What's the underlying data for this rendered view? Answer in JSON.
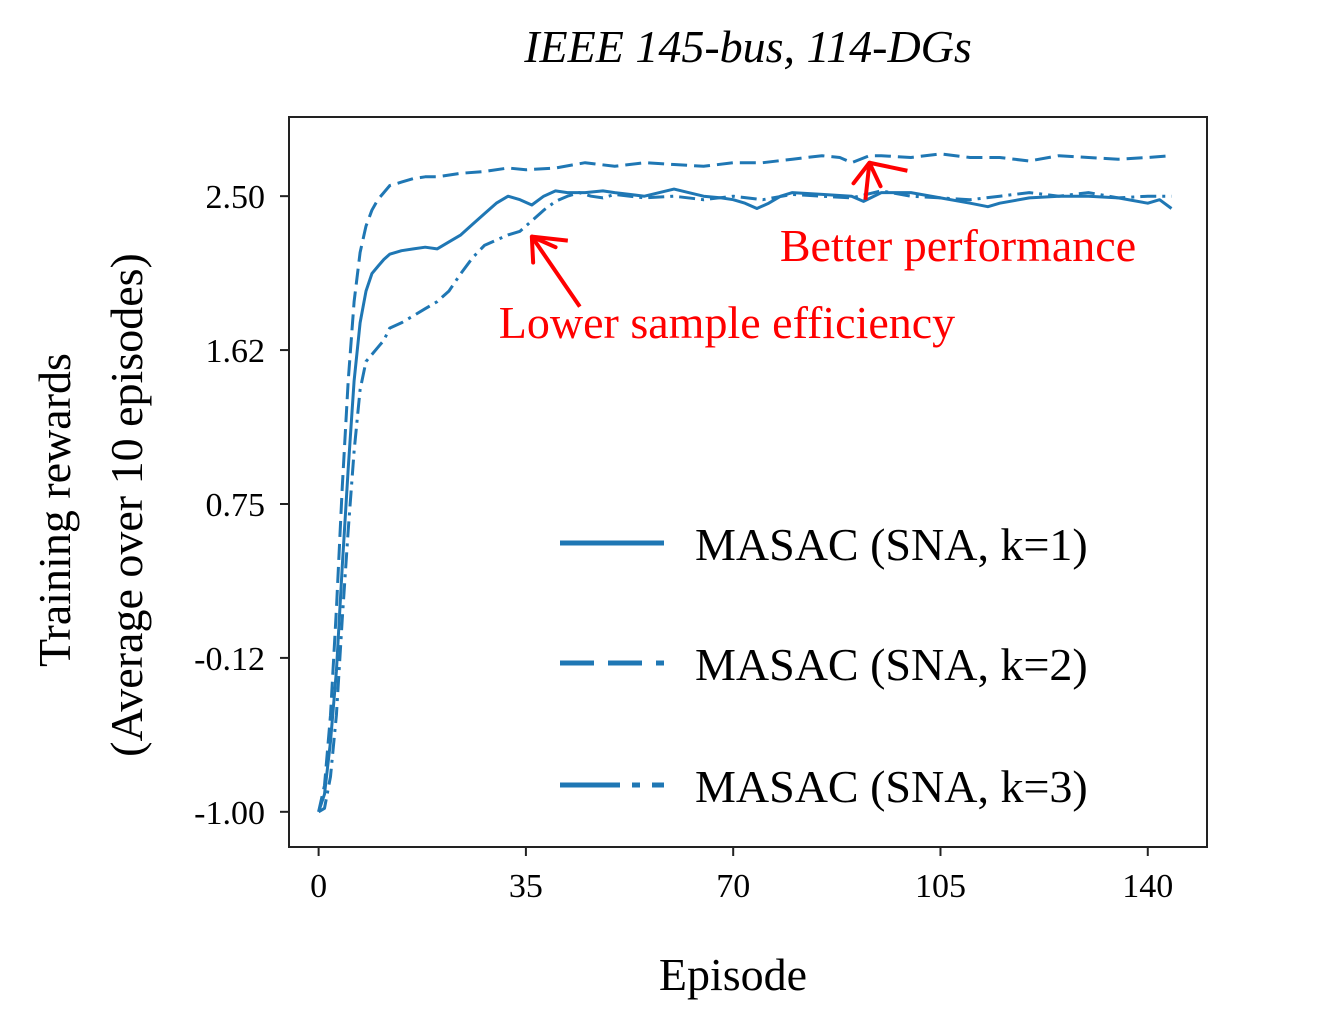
{
  "chart_data": {
    "type": "line",
    "title": "IEEE 145-bus, 114-DGs",
    "xlabel": "Episode",
    "ylabel_lines": [
      "Training rewards",
      "(Average over 10 episodes)"
    ],
    "xlim": [
      -5,
      150
    ],
    "ylim": [
      -1.2,
      2.95
    ],
    "xticks": [
      0,
      35,
      70,
      105,
      140
    ],
    "xtick_labels": [
      "0",
      "35",
      "70",
      "105",
      "140"
    ],
    "yticks": [
      -1.0,
      -0.125,
      0.75,
      1.625,
      2.5
    ],
    "ytick_labels": [
      "-1.00",
      "-0.12",
      "0.75",
      "1.62",
      "2.50"
    ],
    "grid": false,
    "legend_position": "bottom-right",
    "series_color": "#1f77b4",
    "annotation_color": "#ff0000",
    "series": [
      {
        "name": "MASAC (SNA, k=1)",
        "dash": "solid",
        "x": [
          0,
          1,
          2,
          3,
          4,
          5,
          6,
          7,
          8,
          9,
          10,
          11,
          12,
          14,
          16,
          18,
          20,
          22,
          24,
          26,
          28,
          30,
          32,
          34,
          36,
          38,
          40,
          42,
          45,
          48,
          50,
          55,
          60,
          65,
          68,
          70,
          72,
          74,
          76,
          78,
          80,
          85,
          90,
          92,
          95,
          100,
          105,
          110,
          113,
          115,
          120,
          125,
          130,
          135,
          140,
          142,
          144
        ],
        "y": [
          -1.0,
          -0.9,
          -0.6,
          -0.2,
          0.4,
          0.95,
          1.45,
          1.78,
          1.96,
          2.06,
          2.1,
          2.14,
          2.17,
          2.19,
          2.2,
          2.21,
          2.2,
          2.24,
          2.28,
          2.34,
          2.4,
          2.46,
          2.5,
          2.48,
          2.45,
          2.5,
          2.53,
          2.52,
          2.52,
          2.53,
          2.52,
          2.5,
          2.54,
          2.5,
          2.49,
          2.48,
          2.46,
          2.43,
          2.46,
          2.5,
          2.52,
          2.51,
          2.5,
          2.47,
          2.52,
          2.52,
          2.49,
          2.46,
          2.44,
          2.46,
          2.49,
          2.5,
          2.5,
          2.49,
          2.46,
          2.48,
          2.43
        ]
      },
      {
        "name": "MASAC (SNA, k=2)",
        "dash": "dashed",
        "x": [
          0,
          1,
          2,
          3,
          4,
          5,
          6,
          7,
          8,
          9,
          10,
          11,
          12,
          14,
          16,
          18,
          20,
          24,
          28,
          32,
          35,
          40,
          45,
          50,
          55,
          60,
          65,
          70,
          75,
          80,
          85,
          88,
          90,
          93,
          95,
          100,
          105,
          110,
          115,
          120,
          125,
          130,
          135,
          140,
          144
        ],
        "y": [
          -1.0,
          -0.85,
          -0.45,
          0.15,
          0.85,
          1.45,
          1.9,
          2.18,
          2.33,
          2.42,
          2.48,
          2.52,
          2.56,
          2.58,
          2.6,
          2.61,
          2.61,
          2.63,
          2.64,
          2.66,
          2.65,
          2.66,
          2.69,
          2.67,
          2.69,
          2.68,
          2.67,
          2.69,
          2.69,
          2.71,
          2.73,
          2.72,
          2.69,
          2.73,
          2.73,
          2.72,
          2.74,
          2.72,
          2.72,
          2.7,
          2.73,
          2.72,
          2.71,
          2.72,
          2.73
        ]
      },
      {
        "name": "MASAC (SNA, k=3)",
        "dash": "dashdot",
        "x": [
          0,
          1,
          2,
          3,
          4,
          5,
          6,
          7,
          8,
          9,
          10,
          11,
          12,
          14,
          16,
          18,
          20,
          22,
          24,
          26,
          28,
          30,
          32,
          34,
          36,
          38,
          40,
          42,
          44,
          46,
          48,
          50,
          55,
          60,
          65,
          70,
          75,
          80,
          85,
          90,
          95,
          100,
          105,
          110,
          115,
          120,
          125,
          130,
          135,
          140,
          144
        ],
        "y": [
          -1.0,
          -0.98,
          -0.8,
          -0.45,
          0.1,
          0.6,
          1.05,
          1.4,
          1.56,
          1.6,
          1.64,
          1.68,
          1.75,
          1.78,
          1.82,
          1.86,
          1.9,
          1.96,
          2.06,
          2.15,
          2.22,
          2.25,
          2.28,
          2.3,
          2.36,
          2.42,
          2.47,
          2.5,
          2.52,
          2.5,
          2.49,
          2.51,
          2.49,
          2.5,
          2.48,
          2.5,
          2.48,
          2.51,
          2.5,
          2.49,
          2.53,
          2.5,
          2.49,
          2.48,
          2.5,
          2.52,
          2.5,
          2.52,
          2.49,
          2.5,
          2.5
        ]
      }
    ],
    "annotations": [
      {
        "text": "Better performance",
        "arrow_to": [
          93,
          2.69
        ],
        "text_anchor": "right of plot top"
      },
      {
        "text": "Lower sample efficiency",
        "arrow_to": [
          36,
          2.27
        ],
        "text_anchor": "middle"
      }
    ]
  }
}
